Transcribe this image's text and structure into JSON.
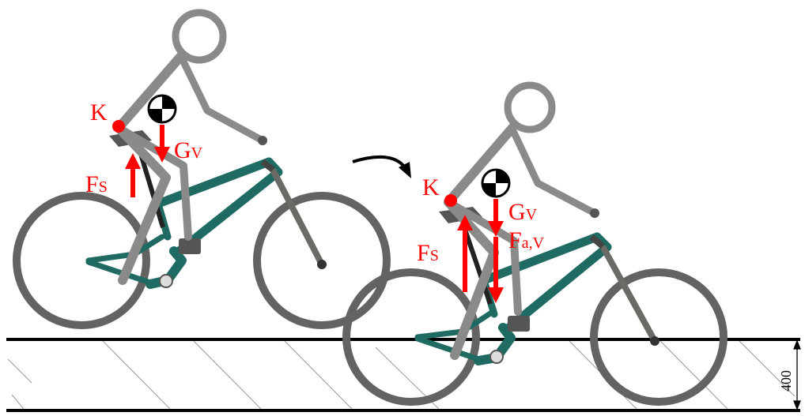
{
  "labels": {
    "left": {
      "pivot": "K",
      "force_gravity": "G",
      "force_gravity_sub": "V",
      "force_support": "F",
      "force_support_sub": "S"
    },
    "right": {
      "pivot": "K",
      "force_gravity": "G",
      "force_gravity_sub": "V",
      "force_support": "F",
      "force_support_sub": "S",
      "force_accel": "F",
      "force_accel_sub": "a,V"
    }
  },
  "dimension": {
    "height": "400"
  },
  "colors": {
    "force": "#ff0000",
    "frame": "#1f6b64",
    "frame_dark": "#0f4a45",
    "rider": "#8a8a88",
    "wheel": "#636361",
    "ground": "#000000",
    "hatch": "#9a9a9a"
  },
  "icons": {
    "cog_marker": "center-of-gravity-icon",
    "motion_arrow": "curved-arrow-icon"
  }
}
